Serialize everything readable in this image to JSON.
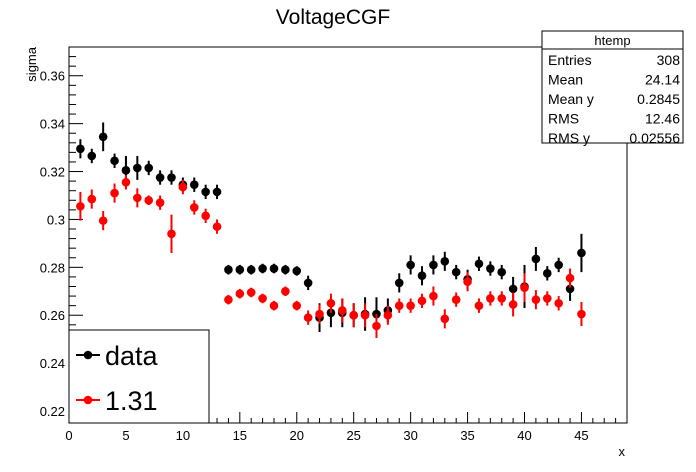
{
  "chart_data": {
    "type": "scatter",
    "title": "VoltageCGF",
    "xlabel": "x",
    "ylabel": "sigma",
    "xlim": [
      0,
      49
    ],
    "ylim": [
      0.215,
      0.372
    ],
    "x_ticks": [
      0,
      5,
      10,
      15,
      20,
      25,
      30,
      35,
      40,
      45
    ],
    "x_tick_labels": [
      "0",
      "5",
      "10",
      "15",
      "20",
      "25",
      "30",
      "35",
      "40",
      "45"
    ],
    "y_ticks": [
      0.22,
      0.24,
      0.26,
      0.28,
      0.3,
      0.32,
      0.34,
      0.36
    ],
    "y_tick_labels": [
      "0.22",
      "0.24",
      "0.26",
      "0.28",
      "0.3",
      "0.32",
      "0.34",
      "0.36"
    ],
    "grid": false,
    "legend_position": "bottom-left",
    "stats_box": {
      "title": "htemp",
      "rows": [
        {
          "label": "Entries",
          "value": "308"
        },
        {
          "label": "Mean",
          "value": "24.14"
        },
        {
          "label": "Mean y",
          "value": "0.2845"
        },
        {
          "label": "RMS",
          "value": "12.46"
        },
        {
          "label": "RMS y",
          "value": "0.02556"
        }
      ]
    },
    "series": [
      {
        "name": "data",
        "color": "#000000",
        "x": [
          1,
          2,
          3,
          4,
          5,
          6,
          7,
          8,
          9,
          10,
          11,
          12,
          13,
          14,
          15,
          16,
          17,
          18,
          19,
          20,
          21,
          22,
          23,
          24,
          25,
          26,
          27,
          28,
          29,
          30,
          31,
          32,
          33,
          34,
          35,
          36,
          37,
          38,
          39,
          40,
          41,
          42,
          43,
          44,
          45
        ],
        "y": [
          0.3295,
          0.3265,
          0.3345,
          0.3245,
          0.3205,
          0.3215,
          0.3215,
          0.3175,
          0.3175,
          0.3145,
          0.3145,
          0.3115,
          0.3115,
          0.279,
          0.279,
          0.279,
          0.2795,
          0.2795,
          0.279,
          0.2785,
          0.2735,
          0.259,
          0.261,
          0.261,
          0.26,
          0.2605,
          0.2605,
          0.262,
          0.2735,
          0.281,
          0.2765,
          0.281,
          0.2825,
          0.278,
          0.275,
          0.2815,
          0.2795,
          0.278,
          0.271,
          0.272,
          0.2835,
          0.2775,
          0.281,
          0.271,
          0.286
        ],
        "err": [
          0.004,
          0.003,
          0.006,
          0.003,
          0.006,
          0.005,
          0.003,
          0.003,
          0.003,
          0.003,
          0.003,
          0.003,
          0.003,
          0.002,
          0.002,
          0.002,
          0.002,
          0.002,
          0.002,
          0.002,
          0.003,
          0.006,
          0.006,
          0.006,
          0.005,
          0.007,
          0.007,
          0.005,
          0.004,
          0.004,
          0.004,
          0.004,
          0.004,
          0.003,
          0.004,
          0.003,
          0.003,
          0.003,
          0.005,
          0.009,
          0.005,
          0.003,
          0.003,
          0.005,
          0.008
        ]
      },
      {
        "name": "1.31",
        "color": "#ff0000",
        "x": [
          1,
          2,
          3,
          4,
          5,
          6,
          7,
          8,
          9,
          10,
          11,
          12,
          13,
          14,
          15,
          16,
          17,
          18,
          19,
          20,
          21,
          22,
          23,
          24,
          25,
          26,
          27,
          28,
          29,
          30,
          31,
          32,
          33,
          34,
          35,
          36,
          37,
          38,
          39,
          40,
          41,
          42,
          43,
          44,
          45
        ],
        "y": [
          0.3055,
          0.3085,
          0.2995,
          0.311,
          0.3155,
          0.309,
          0.308,
          0.307,
          0.294,
          0.3135,
          0.305,
          0.3015,
          0.297,
          0.2665,
          0.269,
          0.2695,
          0.267,
          0.264,
          0.27,
          0.264,
          0.259,
          0.2605,
          0.265,
          0.262,
          0.26,
          0.26,
          0.2555,
          0.26,
          0.264,
          0.264,
          0.266,
          0.268,
          0.2585,
          0.2665,
          0.274,
          0.264,
          0.267,
          0.267,
          0.2645,
          0.2715,
          0.2665,
          0.267,
          0.265,
          0.2755,
          0.2605
        ],
        "err": [
          0.006,
          0.004,
          0.004,
          0.004,
          0.003,
          0.004,
          0.002,
          0.003,
          0.008,
          0.003,
          0.003,
          0.003,
          0.003,
          0.002,
          0.002,
          0.002,
          0.002,
          0.002,
          0.002,
          0.002,
          0.003,
          0.004,
          0.004,
          0.005,
          0.005,
          0.005,
          0.005,
          0.004,
          0.003,
          0.003,
          0.003,
          0.004,
          0.004,
          0.003,
          0.004,
          0.003,
          0.003,
          0.003,
          0.005,
          0.006,
          0.004,
          0.003,
          0.003,
          0.004,
          0.005
        ]
      }
    ]
  }
}
